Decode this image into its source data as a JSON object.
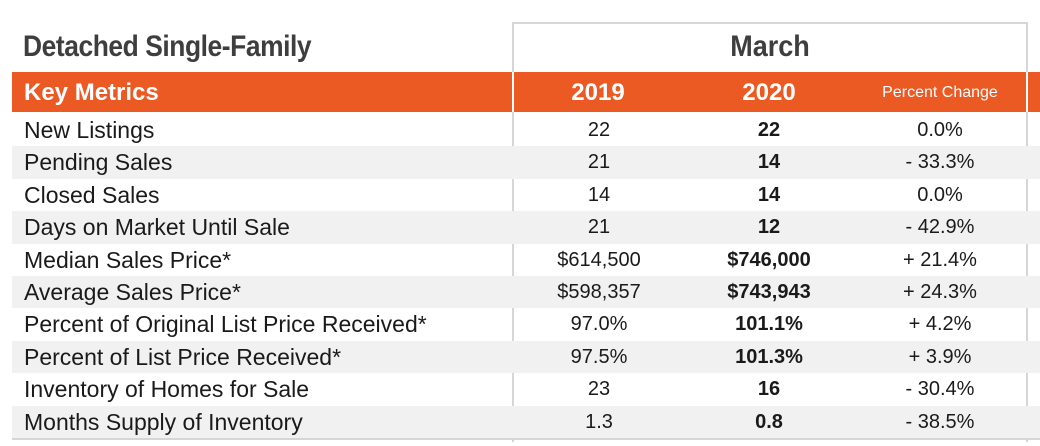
{
  "title": "Detached Single-Family",
  "period": "March",
  "header": {
    "label": "Key Metrics",
    "year1": "2019",
    "year2": "2020",
    "change": "Percent Change"
  },
  "colors": {
    "accent": "#ec5a24",
    "shade": "#f1f1f1",
    "text": "#1a1a1a"
  },
  "rows": [
    {
      "metric": "New Listings",
      "v2019": "22",
      "v2020": "22",
      "change": "0.0%"
    },
    {
      "metric": "Pending Sales",
      "v2019": "21",
      "v2020": "14",
      "change": "- 33.3%"
    },
    {
      "metric": "Closed Sales",
      "v2019": "14",
      "v2020": "14",
      "change": "0.0%"
    },
    {
      "metric": "Days on Market Until Sale",
      "v2019": "21",
      "v2020": "12",
      "change": "- 42.9%"
    },
    {
      "metric": "Median Sales Price*",
      "v2019": "$614,500",
      "v2020": "$746,000",
      "change": "+ 21.4%"
    },
    {
      "metric": "Average Sales Price*",
      "v2019": "$598,357",
      "v2020": "$743,943",
      "change": "+ 24.3%"
    },
    {
      "metric": "Percent of Original List Price Received*",
      "v2019": "97.0%",
      "v2020": "101.1%",
      "change": "+ 4.2%"
    },
    {
      "metric": "Percent of List Price Received*",
      "v2019": "97.5%",
      "v2020": "101.3%",
      "change": "+ 3.9%"
    },
    {
      "metric": "Inventory of Homes for Sale",
      "v2019": "23",
      "v2020": "16",
      "change": "- 30.4%"
    },
    {
      "metric": "Months Supply of Inventory",
      "v2019": "1.3",
      "v2020": "0.8",
      "change": "- 38.5%"
    }
  ]
}
